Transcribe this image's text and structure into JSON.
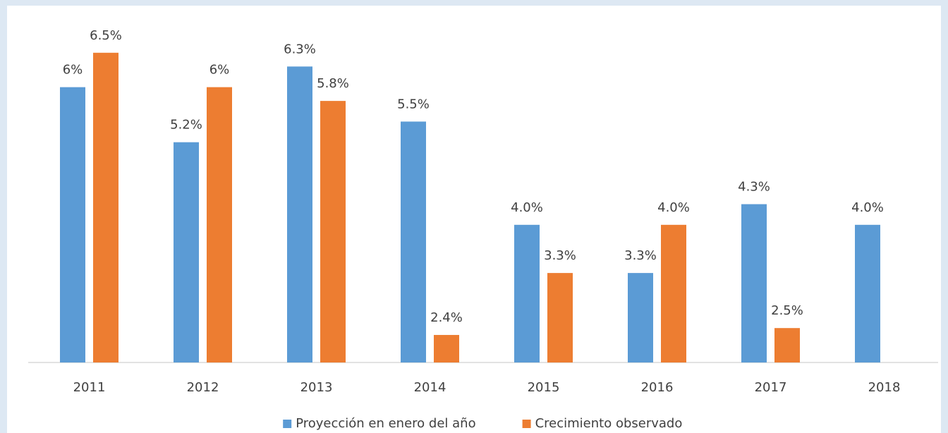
{
  "chart_data": {
    "type": "bar",
    "categories": [
      "2011",
      "2012",
      "2013",
      "2014",
      "2015",
      "2016",
      "2017",
      "2018"
    ],
    "series": [
      {
        "name": "Proyección en enero del año",
        "color": "#5b9bd5",
        "values": [
          6,
          5.2,
          6.3,
          5.5,
          4.0,
          3.3,
          4.3,
          4.0
        ],
        "value_labels": [
          "6%",
          "5.2%",
          "6.3%",
          "5.5%",
          "4.0%",
          "3.3%",
          "4.3%",
          "4.0%"
        ]
      },
      {
        "name": "Crecimiento observado",
        "color": "#ed7d31",
        "values": [
          6.5,
          6,
          5.8,
          2.4,
          3.3,
          4.0,
          2.5,
          null
        ],
        "value_labels": [
          "6.5%",
          "6%",
          "5.8%",
          "2.4%",
          "3.3%",
          "4.0%",
          "2.5%",
          null
        ]
      }
    ],
    "ylim": [
      2,
      7
    ],
    "legend": "bottom"
  }
}
